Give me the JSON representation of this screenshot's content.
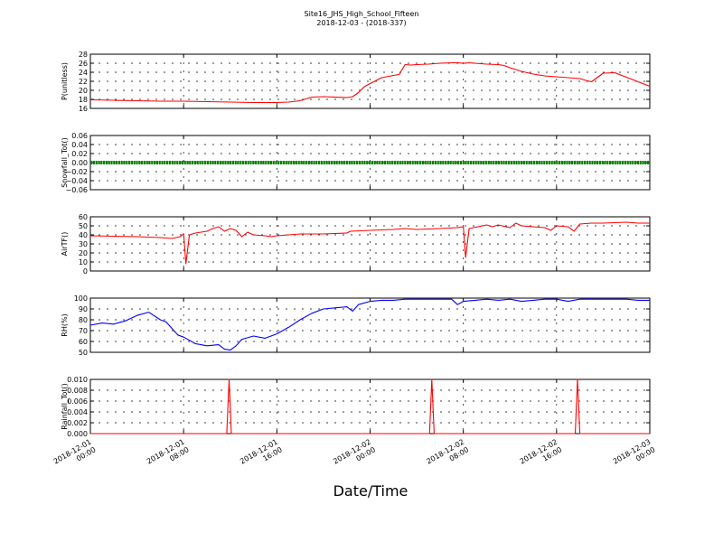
{
  "title": "Site16_JHS_High_School_Fifteen",
  "subtitle": "2018-12-03 - (2018-337)",
  "xlabel": "Date/Time",
  "x_ticks": [
    "2018-12-01\n00:00",
    "2018-12-01\n08:00",
    "2018-12-01\n16:00",
    "2018-12-02\n00:00",
    "2018-12-02\n08:00",
    "2018-12-02\n16:00",
    "2018-12-03\n00:00"
  ],
  "chart_data": [
    {
      "type": "line",
      "ylabel": "P(unitless)",
      "ylim": [
        16,
        28
      ],
      "yticks": [
        "16",
        "18",
        "20",
        "22",
        "24",
        "26",
        "28"
      ],
      "grid": true,
      "series": [
        {
          "color": "#ff0000",
          "x_hours": [
            0,
            2,
            4,
            6,
            8,
            10,
            12,
            14,
            16,
            17,
            18,
            18.5,
            19,
            20,
            22,
            22.5,
            23,
            23.5,
            24,
            25,
            26,
            26.5,
            27,
            27.5,
            28,
            29,
            30,
            31,
            31.5,
            32,
            32.5,
            33,
            34,
            35,
            35.5,
            36,
            37,
            38,
            39,
            40,
            41,
            41.5,
            42,
            42.5,
            43,
            44,
            45,
            46,
            47,
            48
          ],
          "values": [
            17.9,
            17.8,
            17.7,
            17.6,
            17.6,
            17.5,
            17.4,
            17.3,
            17.3,
            17.4,
            17.7,
            18.1,
            18.5,
            18.6,
            18.4,
            18.6,
            19.5,
            20.8,
            21.5,
            22.8,
            23.3,
            23.5,
            25.7,
            25.6,
            25.7,
            25.8,
            26.0,
            26.1,
            26.1,
            26.0,
            26.1,
            26.0,
            25.8,
            25.7,
            25.5,
            25.0,
            24.2,
            23.6,
            23.2,
            23.0,
            22.8,
            22.7,
            22.6,
            22.2,
            21.9,
            23.8,
            23.9,
            22.9,
            21.9,
            20.9
          ]
        }
      ]
    },
    {
      "type": "line",
      "ylabel": "Snowfall_Tot()",
      "ylim": [
        -0.06,
        0.06
      ],
      "yticks": [
        "−0.06",
        "−0.04",
        "−0.02",
        "0.00",
        "0.02",
        "0.04",
        "0.06"
      ],
      "grid": true,
      "series": [
        {
          "color": "#008000",
          "marker": "dot",
          "x_hours": [
            0,
            48
          ],
          "values": [
            0.0,
            0.0
          ]
        }
      ]
    },
    {
      "type": "line",
      "ylabel": "AirTF()",
      "ylim": [
        0,
        60
      ],
      "yticks": [
        "0",
        "10",
        "20",
        "30",
        "40",
        "50",
        "60"
      ],
      "grid": true,
      "series": [
        {
          "color": "#ff0000",
          "x_hours": [
            0,
            2,
            4,
            6,
            7,
            7.7,
            8,
            8.2,
            8.5,
            9,
            10,
            10.5,
            11,
            11.5,
            12,
            12.5,
            13,
            13.5,
            14,
            15,
            15.5,
            16,
            17,
            18,
            20,
            22,
            22.3,
            24,
            26,
            27,
            28,
            30,
            31.5,
            32,
            32.2,
            32.5,
            34,
            34.5,
            35,
            36,
            36.5,
            37,
            38,
            39,
            39.5,
            40,
            41,
            41.5,
            42,
            43,
            44,
            46,
            47,
            48
          ],
          "values": [
            39,
            38.5,
            38,
            37,
            36,
            38,
            41,
            8,
            40,
            42,
            44,
            47,
            49,
            44,
            47,
            45,
            38,
            43,
            40,
            39,
            38,
            39,
            40,
            41,
            41,
            42,
            44,
            45,
            46,
            47,
            46,
            47,
            48,
            49,
            15,
            47,
            51,
            49,
            51,
            48,
            53,
            50,
            49,
            48,
            45,
            50,
            49,
            44,
            52,
            53,
            53,
            54,
            53,
            53
          ]
        }
      ]
    },
    {
      "type": "line",
      "ylabel": "RH(%)",
      "ylim": [
        50,
        100
      ],
      "yticks": [
        "50",
        "60",
        "70",
        "80",
        "90",
        "100"
      ],
      "grid": true,
      "series": [
        {
          "color": "#0000ff",
          "x_hours": [
            0,
            1,
            2,
            3,
            4,
            5,
            6,
            6.5,
            7,
            7.5,
            8,
            9,
            10,
            11,
            11.5,
            12,
            12.5,
            13,
            14,
            15,
            16,
            17,
            18,
            19,
            20,
            21,
            22,
            22.5,
            23,
            24,
            25,
            26,
            27,
            29,
            30,
            31,
            31.5,
            32,
            33,
            34,
            35,
            36,
            37,
            38,
            39,
            40,
            41,
            42,
            43,
            44,
            45,
            46,
            47,
            48
          ],
          "values": [
            75,
            77,
            76,
            79,
            84,
            87,
            80,
            78,
            72,
            66,
            64,
            58,
            56,
            57,
            53,
            52,
            56,
            62,
            65,
            63,
            67,
            73,
            80,
            86,
            90,
            91,
            92,
            88,
            94,
            97,
            98,
            98,
            99,
            99,
            99,
            99,
            94,
            97,
            98,
            99,
            98,
            99,
            97,
            98,
            99,
            99,
            97,
            99,
            99,
            99,
            99,
            99,
            98,
            98
          ]
        }
      ]
    },
    {
      "type": "line",
      "ylabel": "Rainfall_Tot()",
      "ylim": [
        0,
        0.01
      ],
      "yticks": [
        "0.000",
        "0.002",
        "0.004",
        "0.006",
        "0.008",
        "0.010"
      ],
      "grid": true,
      "series": [
        {
          "color": "#ff0000",
          "x_hours": [
            0,
            11.7,
            11.9,
            12.1,
            29.1,
            29.3,
            29.5,
            41.6,
            41.8,
            42.0,
            48
          ],
          "values": [
            0,
            0,
            0.01,
            0,
            0,
            0.01,
            0,
            0,
            0.01,
            0,
            0
          ]
        }
      ]
    }
  ]
}
